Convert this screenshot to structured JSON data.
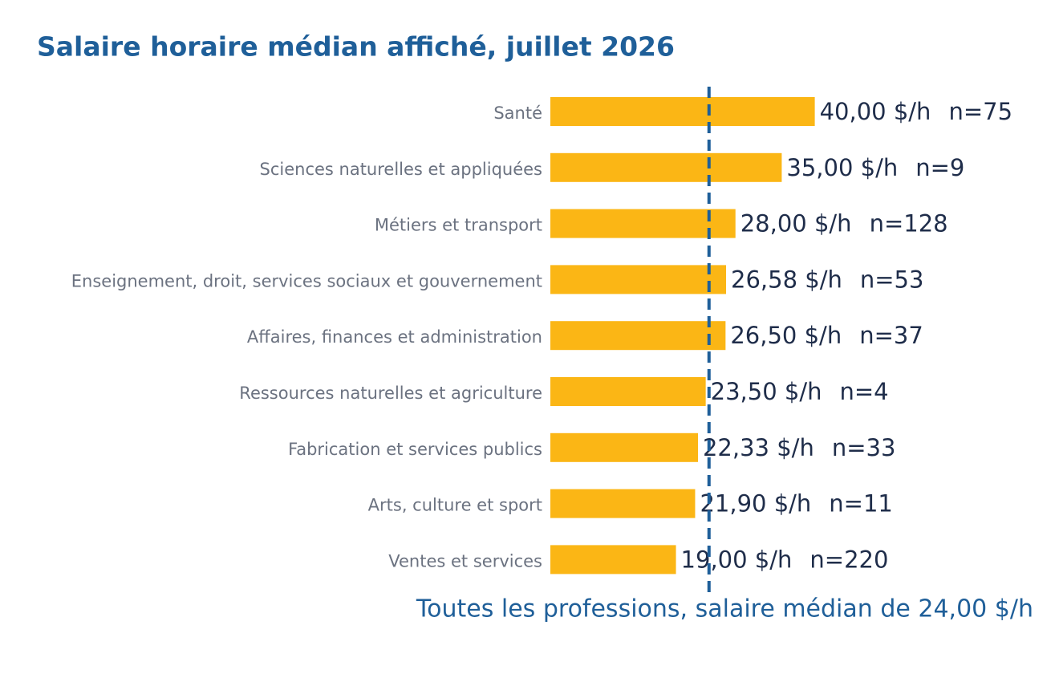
{
  "chart_data": {
    "type": "hbar",
    "title": "Salaire horaire médian affiché, juillet 2026",
    "categories": [
      "Santé",
      "Sciences naturelles et appliquées",
      "Métiers et transport",
      "Enseignement, droit, services sociaux et gouvernement",
      "Affaires, finances et administration",
      "Ressources naturelles et agriculture",
      "Fabrication et services publics",
      "Arts, culture et sport",
      "Ventes et services"
    ],
    "values": [
      40,
      35,
      28,
      26.58,
      26.5,
      23.5,
      22.33,
      21.9,
      19
    ],
    "value_labels": [
      "40,00 $/h",
      "35,00 $/h",
      "28,00 $/h",
      "26,58 $/h",
      "26,50 $/h",
      "23,50 $/h",
      "22,33 $/h",
      "21,90 $/h",
      "19,00 $/h"
    ],
    "count_labels": [
      "n=75",
      "n=9",
      "n=128",
      "n=53",
      "n=37",
      "n=4",
      "n=33",
      "n=11",
      "n=220"
    ],
    "color": "#fbb615",
    "xlim": [
      0,
      75
    ],
    "reference": {
      "value": 24,
      "label": "Toutes les professions, salaire médian de 24,00 $/h",
      "color": "#1f5f99"
    }
  }
}
